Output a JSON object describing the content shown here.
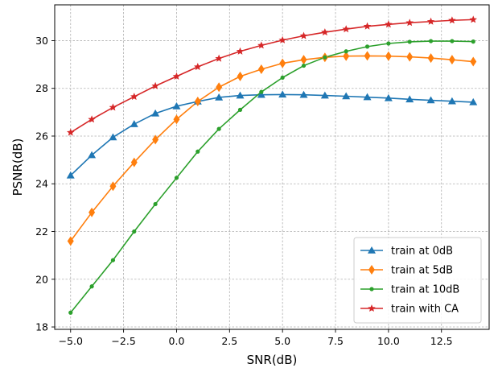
{
  "chart_data": {
    "type": "line",
    "title": "",
    "xlabel": "SNR(dB)",
    "ylabel": "PSNR(dB)",
    "xlim": [
      -5.75,
      14.75
    ],
    "ylim": [
      17.9,
      31.5
    ],
    "xticks": [
      -5.0,
      -2.5,
      0.0,
      2.5,
      5.0,
      7.5,
      10.0,
      12.5
    ],
    "xtick_labels": [
      "−5.0",
      "−2.5",
      "0.0",
      "2.5",
      "5.0",
      "7.5",
      "10.0",
      "12.5"
    ],
    "yticks": [
      18,
      20,
      22,
      24,
      26,
      28,
      30
    ],
    "ytick_labels": [
      "18",
      "20",
      "22",
      "24",
      "26",
      "28",
      "30"
    ],
    "grid": true,
    "legend_position": "bottom-right",
    "x": [
      -5,
      -4,
      -3,
      -2,
      -1,
      0,
      1,
      2,
      3,
      4,
      5,
      6,
      7,
      8,
      9,
      10,
      11,
      12,
      13,
      14
    ],
    "series": [
      {
        "name": "train at 0dB",
        "color": "#1f77b4",
        "marker": "triangle",
        "values": [
          24.35,
          25.2,
          25.95,
          26.5,
          26.95,
          27.25,
          27.45,
          27.62,
          27.7,
          27.73,
          27.74,
          27.73,
          27.7,
          27.67,
          27.63,
          27.59,
          27.54,
          27.5,
          27.46,
          27.42
        ]
      },
      {
        "name": "train at 5dB",
        "color": "#ff7f0e",
        "marker": "diamond",
        "values": [
          21.6,
          22.8,
          23.9,
          24.9,
          25.85,
          26.7,
          27.45,
          28.05,
          28.5,
          28.8,
          29.05,
          29.2,
          29.3,
          29.35,
          29.36,
          29.35,
          29.32,
          29.27,
          29.2,
          29.12
        ]
      },
      {
        "name": "train at 10dB",
        "color": "#2ca02c",
        "marker": "dot",
        "values": [
          18.6,
          19.7,
          20.8,
          22.0,
          23.15,
          24.25,
          25.35,
          26.3,
          27.1,
          27.85,
          28.45,
          28.95,
          29.3,
          29.55,
          29.75,
          29.88,
          29.95,
          29.98,
          29.98,
          29.96
        ]
      },
      {
        "name": "train with CA",
        "color": "#d62728",
        "marker": "star",
        "values": [
          26.15,
          26.7,
          27.2,
          27.65,
          28.1,
          28.5,
          28.9,
          29.25,
          29.55,
          29.8,
          30.02,
          30.2,
          30.35,
          30.48,
          30.6,
          30.68,
          30.75,
          30.8,
          30.85,
          30.88
        ]
      }
    ]
  }
}
